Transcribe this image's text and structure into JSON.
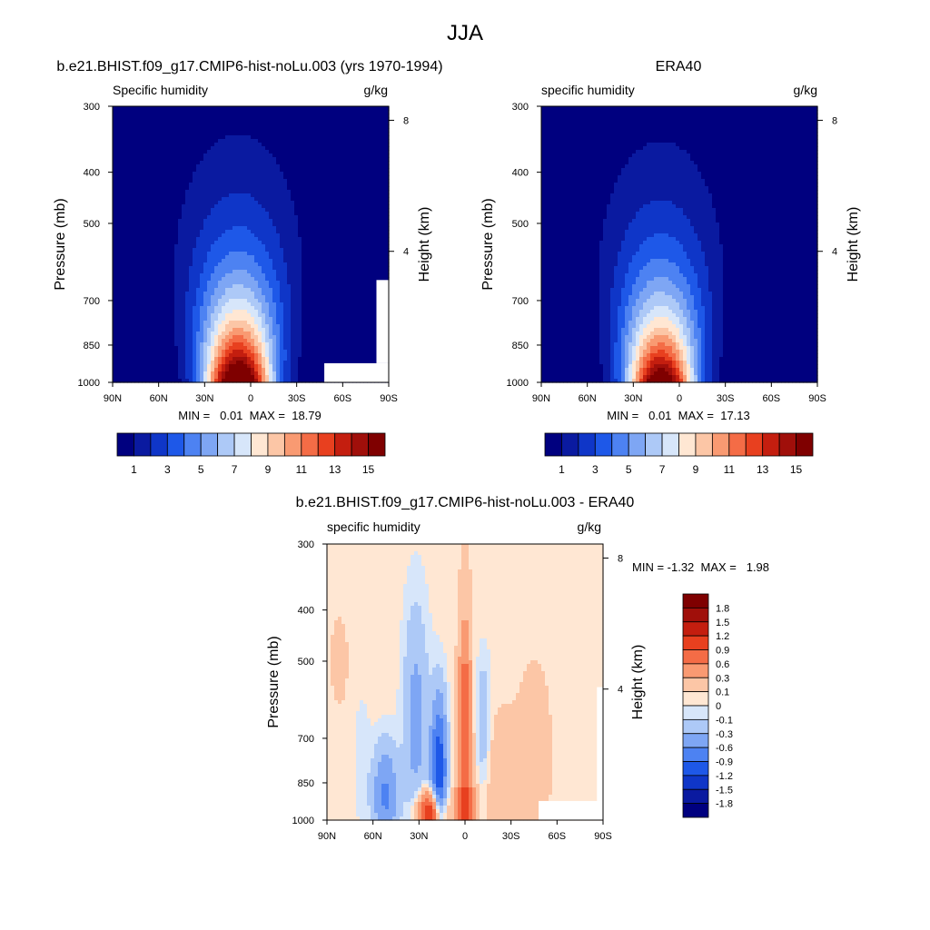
{
  "figure": {
    "title": "JJA"
  },
  "chart_data": [
    {
      "type": "heatmap",
      "title": "b.e21.BHIST.f09_g17.CMIP6-hist-noLu.003 (yrs 1970-1994)",
      "subtitle_left": "Specific humidity",
      "subtitle_right": "g/kg",
      "ylabel": "Pressure (mb)",
      "ylabel_right": "Height (km)",
      "x_ticks": [
        "90N",
        "60N",
        "30N",
        "0",
        "30S",
        "60S",
        "90S"
      ],
      "y_ticks": [
        "300",
        "400",
        "500",
        "700",
        "850",
        "1000"
      ],
      "y_tick_values": [
        300,
        400,
        500,
        700,
        850,
        1000
      ],
      "height_ticks": [
        "8",
        "4"
      ],
      "xlim": [
        90,
        -90
      ],
      "ylim": [
        1000,
        300
      ],
      "y_scale": "log",
      "stats": "MIN =   0.01  MAX =  18.79",
      "min": 0.01,
      "max": 18.79,
      "colorbar": {
        "orientation": "horizontal",
        "labels": [
          "1",
          "3",
          "5",
          "7",
          "9",
          "11",
          "13",
          "15"
        ],
        "levels": [
          1,
          2,
          3,
          4,
          5,
          6,
          7,
          8,
          9,
          10,
          11,
          12,
          13,
          14,
          15
        ],
        "colors": [
          "#00007f",
          "#0a1aa0",
          "#0f36c8",
          "#1e58e8",
          "#4d82f2",
          "#7ea6f4",
          "#adc9f7",
          "#d7e6fa",
          "#ffe7d3",
          "#fcc6a6",
          "#f99a72",
          "#f46c46",
          "#e8401f",
          "#c41e0f",
          "#a00f0a",
          "#7f0000"
        ]
      },
      "peak_lat": 8,
      "peak_value": 19.2,
      "lat_spread": 22,
      "scale_height_km": 2.55,
      "missing_regions": "near-surface polar south"
    },
    {
      "type": "heatmap",
      "title": "ERA40",
      "subtitle_left": "specific humidity",
      "subtitle_right": "g/kg",
      "ylabel": "Pressure (mb)",
      "ylabel_right": "Height (km)",
      "x_ticks": [
        "90N",
        "60N",
        "30N",
        "0",
        "30S",
        "60S",
        "90S"
      ],
      "y_ticks": [
        "300",
        "400",
        "500",
        "700",
        "850",
        "1000"
      ],
      "y_tick_values": [
        300,
        400,
        500,
        700,
        850,
        1000
      ],
      "height_ticks": [
        "8",
        "4"
      ],
      "xlim": [
        90,
        -90
      ],
      "ylim": [
        1000,
        300
      ],
      "y_scale": "log",
      "stats": "MIN =   0.01  MAX =  17.13",
      "min": 0.01,
      "max": 17.13,
      "colorbar": {
        "orientation": "horizontal",
        "labels": [
          "1",
          "3",
          "5",
          "7",
          "9",
          "11",
          "13",
          "15"
        ],
        "levels": [
          1,
          2,
          3,
          4,
          5,
          6,
          7,
          8,
          9,
          10,
          11,
          12,
          13,
          14,
          15
        ],
        "colors": [
          "#00007f",
          "#0a1aa0",
          "#0f36c8",
          "#1e58e8",
          "#4d82f2",
          "#7ea6f4",
          "#adc9f7",
          "#d7e6fa",
          "#ffe7d3",
          "#fcc6a6",
          "#f99a72",
          "#f46c46",
          "#e8401f",
          "#c41e0f",
          "#a00f0a",
          "#7f0000"
        ]
      },
      "peak_lat": 12,
      "peak_value": 17.6,
      "lat_spread": 22,
      "scale_height_km": 2.55
    },
    {
      "type": "heatmap",
      "title": "b.e21.BHIST.f09_g17.CMIP6-hist-noLu.003 - ERA40",
      "subtitle_left": "specific humidity",
      "subtitle_right": "g/kg",
      "ylabel": "Pressure (mb)",
      "ylabel_right": "Height (km)",
      "x_ticks": [
        "90N",
        "60N",
        "30N",
        "0",
        "30S",
        "60S",
        "90S"
      ],
      "y_ticks": [
        "300",
        "400",
        "500",
        "700",
        "850",
        "1000"
      ],
      "y_tick_values": [
        300,
        400,
        500,
        700,
        850,
        1000
      ],
      "height_ticks": [
        "8",
        "4"
      ],
      "xlim": [
        90,
        -90
      ],
      "ylim": [
        1000,
        300
      ],
      "y_scale": "log",
      "stats": "MIN = -1.32  MAX =   1.98",
      "min": -1.32,
      "max": 1.98,
      "colorbar": {
        "orientation": "vertical",
        "labels": [
          "1.8",
          "1.5",
          "1.2",
          "0.9",
          "0.6",
          "0.3",
          "0.1",
          "0",
          "-0.1",
          "-0.3",
          "-0.6",
          "-0.9",
          "-1.2",
          "-1.5",
          "-1.8"
        ],
        "levels": [
          -1.8,
          -1.5,
          -1.2,
          -0.9,
          -0.6,
          -0.3,
          -0.1,
          0,
          0.1,
          0.3,
          0.6,
          0.9,
          1.2,
          1.5,
          1.8
        ],
        "colors": [
          "#00007f",
          "#0a1aa0",
          "#0f36c8",
          "#1e58e8",
          "#4d82f2",
          "#7ea6f4",
          "#adc9f7",
          "#d7e6fa",
          "#ffe7d3",
          "#fcc6a6",
          "#f99a72",
          "#f46c46",
          "#e8401f",
          "#c41e0f",
          "#a00f0a",
          "#7f0000"
        ]
      },
      "features": [
        {
          "lat": 17,
          "p": 830,
          "dlat": 5,
          "dp": 0.33,
          "amp": -1.3
        },
        {
          "lat": 32,
          "p": 650,
          "dlat": 8,
          "dp": 0.5,
          "amp": -0.45
        },
        {
          "lat": 0,
          "p": 620,
          "dlat": 4,
          "dp": 0.35,
          "amp": 0.85
        },
        {
          "lat": -12,
          "p": 680,
          "dlat": 5,
          "dp": 0.3,
          "amp": -0.35
        },
        {
          "lat": 22,
          "p": 975,
          "dlat": 9,
          "dp": 0.1,
          "amp": 1.4
        },
        {
          "lat": 0,
          "p": 950,
          "dlat": 6,
          "dp": 0.12,
          "amp": 0.9
        },
        {
          "lat": 52,
          "p": 900,
          "dlat": 8,
          "dp": 0.22,
          "amp": -0.7
        },
        {
          "lat": -22,
          "p": 820,
          "dlat": 15,
          "dp": 0.25,
          "amp": 0.22
        },
        {
          "lat": -45,
          "p": 750,
          "dlat": 10,
          "dp": 0.35,
          "amp": 0.2
        },
        {
          "lat": 82,
          "p": 500,
          "dlat": 6,
          "dp": 0.2,
          "amp": 0.12
        },
        {
          "lat": 67,
          "p": 780,
          "dlat": 5,
          "dp": 0.3,
          "amp": -0.12
        },
        {
          "lat": 0,
          "p": 350,
          "dlat": 3,
          "dp": 0.15,
          "amp": 0.15
        }
      ],
      "background": 0.05
    }
  ]
}
